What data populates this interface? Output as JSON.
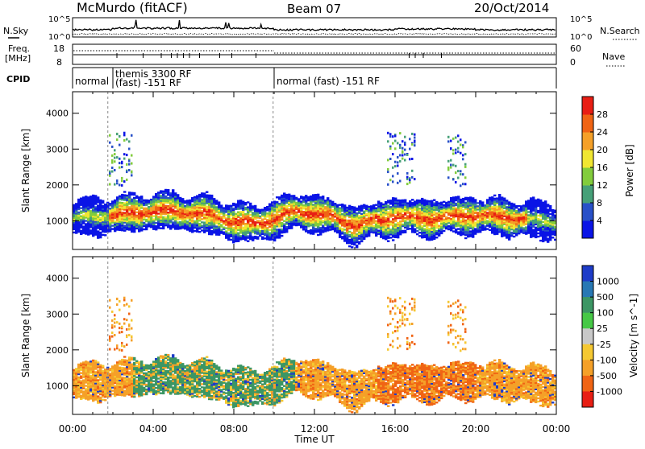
{
  "header": {
    "station": "McMurdo (fitACF)",
    "beam": "Beam 07",
    "date": "20/Oct/2014"
  },
  "summary": {
    "left_labels": [
      "N.Sky",
      "Freq.",
      "[MHz]",
      "CPID"
    ],
    "right_labels": [
      "N.Search",
      "Nave"
    ],
    "noise_ticks": [
      "10^5",
      "10^0"
    ],
    "noise_ticks_right": [
      "10^5",
      "10^0"
    ],
    "freq_ticks": [
      "18",
      "8"
    ],
    "nave_ticks": [
      "60",
      "0"
    ],
    "cpid_segments": [
      {
        "label": "normal",
        "start": 0.0,
        "end": 1.75
      },
      {
        "label": "themis 3300 RF",
        "label2": "(fast) -151 RF",
        "start": 1.75,
        "end": 9.95
      },
      {
        "label": "normal (fast) -151 RF",
        "start": 9.95,
        "end": 24.0
      }
    ]
  },
  "chart_data": [
    {
      "type": "heatmap",
      "name": "power",
      "ylabel": "Slant Range [km]",
      "ylim": [
        200,
        4600
      ],
      "yticks": [
        "1000",
        "2000",
        "3000",
        "4000"
      ],
      "xlim": [
        0,
        24
      ],
      "colorbar": {
        "label": "Power [dB]",
        "ticks": [
          "4",
          "8",
          "12",
          "16",
          "20",
          "24",
          "28"
        ],
        "colors": [
          "#0a14e6",
          "#2850c8",
          "#46a078",
          "#82cc3c",
          "#f0e632",
          "#f5a028",
          "#f06414",
          "#e81e14"
        ]
      },
      "echo_band": {
        "center_km": [
          [
            0,
            1050
          ],
          [
            1,
            1100
          ],
          [
            2,
            1150
          ],
          [
            3,
            1200
          ],
          [
            4,
            1250
          ],
          [
            5,
            1250
          ],
          [
            6,
            1200
          ],
          [
            7,
            1100
          ],
          [
            8,
            950
          ],
          [
            9,
            900
          ],
          [
            10,
            1050
          ],
          [
            11,
            1250
          ],
          [
            12,
            1200
          ],
          [
            13,
            1050
          ],
          [
            14,
            850
          ],
          [
            15,
            1000
          ],
          [
            16,
            1100
          ],
          [
            17,
            1050
          ],
          [
            18,
            1050
          ],
          [
            19,
            1100
          ],
          [
            20,
            1150
          ],
          [
            21,
            1100
          ],
          [
            22,
            1050
          ],
          [
            23,
            1000
          ],
          [
            24,
            950
          ]
        ],
        "half_width_km": 380
      }
    },
    {
      "type": "heatmap",
      "name": "velocity",
      "ylabel": "Slant Range [km]",
      "ylim": [
        200,
        4600
      ],
      "yticks": [
        "1000",
        "2000",
        "3000",
        "4000"
      ],
      "xlim": [
        0,
        24
      ],
      "xticks": [
        "00:00",
        "04:00",
        "08:00",
        "12:00",
        "16:00",
        "20:00",
        "00:00"
      ],
      "xlabel": "Time UT",
      "colorbar": {
        "label": "Velocity [m s^-1]",
        "ticks": [
          "1000",
          "500",
          "100",
          "25",
          "-25",
          "-100",
          "-500",
          "-1000"
        ],
        "colors": [
          "#1e3cc8",
          "#2878b4",
          "#3c9664",
          "#46c846",
          "#c8c8c8",
          "#f5c832",
          "#f5a028",
          "#f06414",
          "#e81e14"
        ]
      }
    }
  ]
}
